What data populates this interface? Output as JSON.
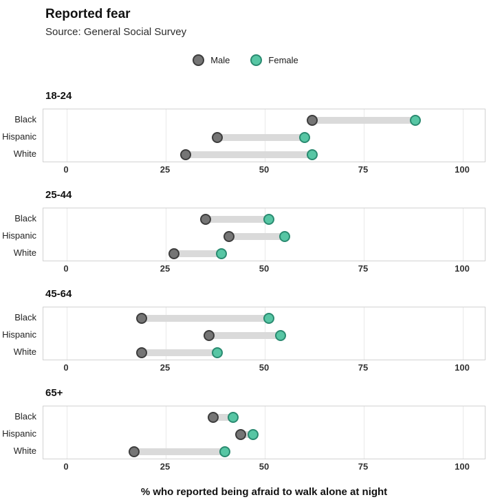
{
  "header": {
    "title": "Reported fear",
    "subtitle": "Source: General Social Survey"
  },
  "chart_data": {
    "type": "dumbbell",
    "title": "Reported fear",
    "subtitle": "Source: General Social Survey",
    "series_names": [
      "Male",
      "Female"
    ],
    "x_ticks": [
      0,
      25,
      50,
      75,
      100
    ],
    "xlim": [
      -6,
      106
    ],
    "xlabel": "% who reported being afraid to walk alone at night",
    "grid": "vertical-only",
    "legend_position": "top-center",
    "groups": [
      {
        "age": "18-24",
        "rows": [
          {
            "label": "Black",
            "male": 62,
            "female": 88
          },
          {
            "label": "Hispanic",
            "male": 38,
            "female": 60
          },
          {
            "label": "White",
            "male": 30,
            "female": 62
          }
        ]
      },
      {
        "age": "25-44",
        "rows": [
          {
            "label": "Black",
            "male": 35,
            "female": 51
          },
          {
            "label": "Hispanic",
            "male": 41,
            "female": 55
          },
          {
            "label": "White",
            "male": 27,
            "female": 39
          }
        ]
      },
      {
        "age": "45-64",
        "rows": [
          {
            "label": "Black",
            "male": 19,
            "female": 51
          },
          {
            "label": "Hispanic",
            "male": 36,
            "female": 54
          },
          {
            "label": "White",
            "male": 19,
            "female": 38
          }
        ]
      },
      {
        "age": "65+",
        "rows": [
          {
            "label": "Black",
            "male": 37,
            "female": 42
          },
          {
            "label": "Hispanic",
            "male": 44,
            "female": 47
          },
          {
            "label": "White",
            "male": 17,
            "female": 40
          }
        ]
      }
    ],
    "colors": {
      "male": "#757575",
      "male_border": "#3d3d3d",
      "female": "#57c6a4",
      "female_border": "#2a8a70",
      "connector": "#dadada"
    }
  }
}
